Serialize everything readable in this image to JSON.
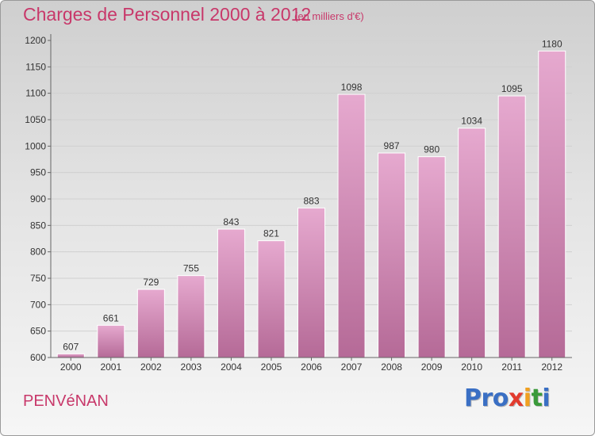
{
  "header": {
    "title": "Charges de Personnel 2000 à 2012",
    "subtitle": "(en milliers d'€)"
  },
  "footer": {
    "city": "PENVéNAN",
    "logo": [
      "Pro",
      "x",
      "i",
      "t",
      "i"
    ],
    "logo_alt": "Proxiti"
  },
  "colors": {
    "title": "#c8386a",
    "bar_top": "#e6a9cf",
    "bar_bottom": "#b56a97",
    "bar_border": "#ffffff",
    "grid": "#d0d0d0",
    "axis": "#666666"
  },
  "chart_data": {
    "type": "bar",
    "categories": [
      "2000",
      "2001",
      "2002",
      "2003",
      "2004",
      "2005",
      "2006",
      "2007",
      "2008",
      "2009",
      "2010",
      "2011",
      "2012"
    ],
    "values": [
      607,
      661,
      729,
      755,
      843,
      821,
      883,
      1098,
      987,
      980,
      1034,
      1095,
      1180
    ],
    "ylim": [
      600,
      1200
    ],
    "yticks": [
      600,
      650,
      700,
      750,
      800,
      850,
      900,
      950,
      1000,
      1050,
      1100,
      1150,
      1200
    ],
    "grid": true,
    "legend": "none",
    "title": "Charges de Personnel 2000 à 2012",
    "xlabel": "",
    "ylabel": ""
  }
}
